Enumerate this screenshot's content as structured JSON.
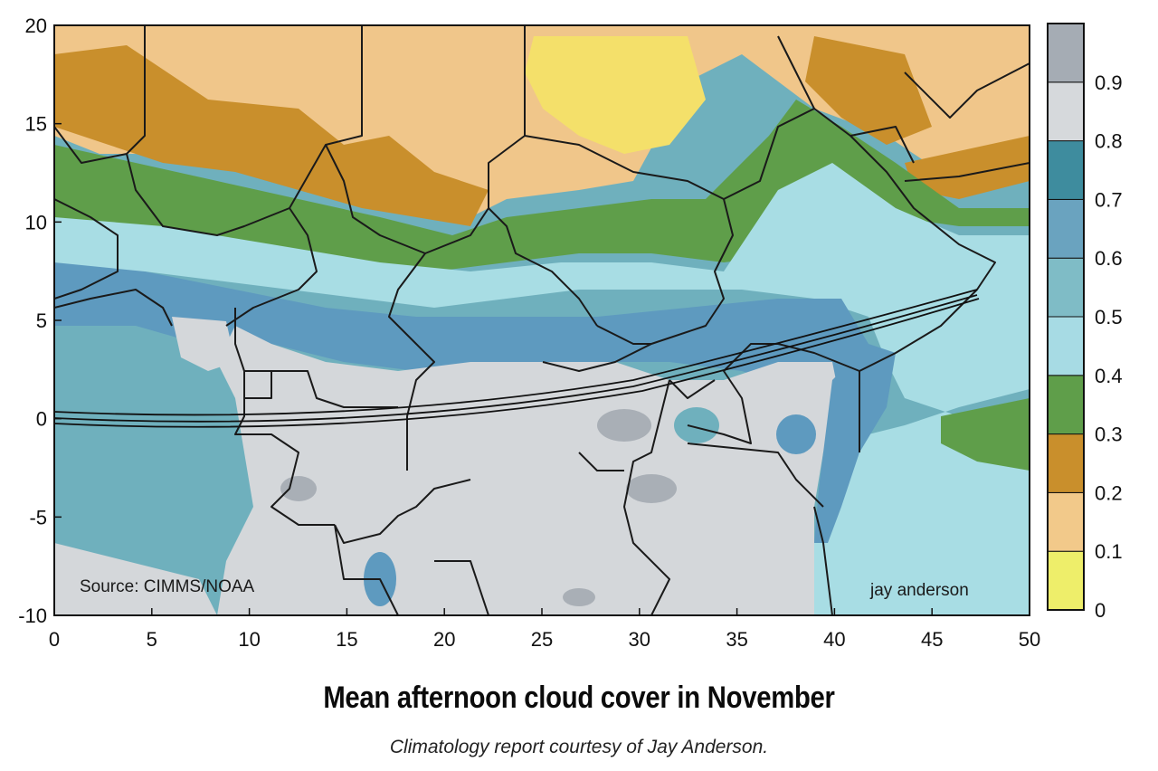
{
  "map": {
    "title": "Mean afternoon cloud cover in November",
    "subtitle": "Climatology report courtesy of Jay Anderson.",
    "source_note": "Source: CIMMS/NOAA",
    "author_note": "jay anderson",
    "x_ticks": [
      "0",
      "5",
      "10",
      "15",
      "20",
      "25",
      "30",
      "35",
      "40",
      "45",
      "50"
    ],
    "y_ticks": [
      "20",
      "15",
      "10",
      "5",
      "0",
      "-5",
      "-10"
    ],
    "colorbar": {
      "labels": [
        "0.9",
        "0.8",
        "0.7",
        "0.6",
        "0.5",
        "0.4",
        "0.3",
        "0.2",
        "0.1",
        "0"
      ],
      "colors": [
        "#eeee6a",
        "#f2c98a",
        "#c98f2c",
        "#5f9e4a",
        "#a7dbe4",
        "#7fbcc6",
        "#6aa3bf",
        "#3e8c9e",
        "#d6d9dc",
        "#a5acb4"
      ]
    },
    "colors": {
      "land_dry": "#f0c68a",
      "land_very_dry": "#f4e06a",
      "sahel_brown": "#c98f2c",
      "green_band": "#5f9e4a",
      "light_cyan": "#a8dde4",
      "mid_teal": "#6fb0bd",
      "blue_teal": "#5e9abf",
      "gray_land": "#d4d7da",
      "dark_gray": "#a9afb6",
      "border_line": "#1a1a1a"
    }
  }
}
